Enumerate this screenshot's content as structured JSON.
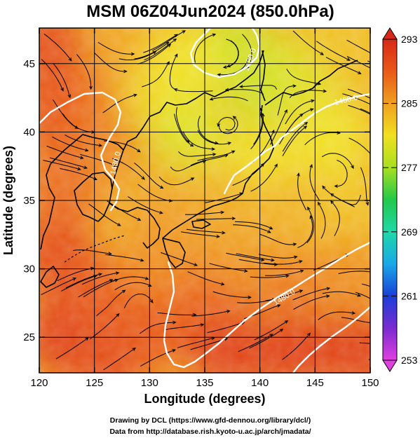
{
  "chart_data": {
    "type": "heatmap",
    "title": "MSM 06Z04Jun2024 (850.0hPa)",
    "xlabel": "Longitude (degrees)",
    "ylabel": "Latitude  (degrees)",
    "xlim": [
      120,
      150
    ],
    "ylim": [
      22.4,
      47.6
    ],
    "xticks": [
      120,
      125,
      130,
      135,
      140,
      145,
      150
    ],
    "xtick_labels": [
      "120",
      "125",
      "130",
      "135",
      "140",
      "145",
      "150"
    ],
    "yticks": [
      25,
      30,
      35,
      40,
      45
    ],
    "ytick_labels": [
      "25",
      "30",
      "35",
      "40",
      "45"
    ],
    "grid": true,
    "colorbar": {
      "min": 253,
      "max": 293,
      "ticks": [
        293,
        285,
        277,
        269,
        261,
        253
      ],
      "tick_labels": [
        "293",
        "285",
        "277",
        "269",
        "261",
        "253"
      ],
      "colors": [
        "#e040e0",
        "#7a2bd0",
        "#1a3fd8",
        "#1aa8e8",
        "#20d8a8",
        "#22c84a",
        "#a8e020",
        "#f0e020",
        "#f0a020",
        "#e85a18",
        "#d82818"
      ],
      "position": "right"
    },
    "temperature_field": [
      {
        "lon": 120.5,
        "lat": 46.5,
        "value": 290
      },
      {
        "lon": 121.5,
        "lat": 41.5,
        "value": 290
      },
      {
        "lon": 124.0,
        "lat": 42.0,
        "value": 289
      },
      {
        "lon": 128.5,
        "lat": 45.5,
        "value": 285
      },
      {
        "lon": 127.5,
        "lat": 40.5,
        "value": 287
      },
      {
        "lon": 122.0,
        "lat": 36.0,
        "value": 288
      },
      {
        "lon": 121.5,
        "lat": 31.0,
        "value": 290
      },
      {
        "lon": 122.0,
        "lat": 25.0,
        "value": 291
      },
      {
        "lon": 127.0,
        "lat": 28.0,
        "value": 289
      },
      {
        "lon": 131.0,
        "lat": 42.5,
        "value": 282
      },
      {
        "lon": 133.5,
        "lat": 40.0,
        "value": 280
      },
      {
        "lon": 137.5,
        "lat": 46.0,
        "value": 279
      },
      {
        "lon": 140.5,
        "lat": 43.5,
        "value": 279
      },
      {
        "lon": 144.5,
        "lat": 44.5,
        "value": 280
      },
      {
        "lon": 148.0,
        "lat": 46.5,
        "value": 283
      },
      {
        "lon": 146.5,
        "lat": 39.5,
        "value": 281
      },
      {
        "lon": 140.0,
        "lat": 37.5,
        "value": 281
      },
      {
        "lon": 136.0,
        "lat": 34.8,
        "value": 284
      },
      {
        "lon": 131.0,
        "lat": 34.0,
        "value": 285
      },
      {
        "lon": 131.0,
        "lat": 30.5,
        "value": 286
      },
      {
        "lon": 137.0,
        "lat": 31.5,
        "value": 285
      },
      {
        "lon": 143.0,
        "lat": 34.0,
        "value": 284
      },
      {
        "lon": 148.5,
        "lat": 34.0,
        "value": 283
      },
      {
        "lon": 148.5,
        "lat": 29.5,
        "value": 286
      },
      {
        "lon": 142.5,
        "lat": 28.5,
        "value": 287
      },
      {
        "lon": 135.0,
        "lat": 27.5,
        "value": 288
      },
      {
        "lon": 130.0,
        "lat": 25.5,
        "value": 289
      },
      {
        "lon": 137.0,
        "lat": 24.0,
        "value": 291
      },
      {
        "lon": 143.0,
        "lat": 24.0,
        "value": 291
      },
      {
        "lon": 149.0,
        "lat": 24.0,
        "value": 291
      },
      {
        "lon": 126.0,
        "lat": 23.0,
        "value": 290
      },
      {
        "lon": 133.0,
        "lat": 45.0,
        "value": 281
      }
    ],
    "contour_labels": [
      "1480.0",
      "1480.0",
      "1480.0",
      "1480.0"
    ]
  },
  "footer": {
    "line1": "Drawing by DCL (https://www.gfd-dennou.org/library/dcl/)",
    "line2": "Data from http://database.rish.kyoto-u.ac.jp/arch/jmadata/"
  }
}
